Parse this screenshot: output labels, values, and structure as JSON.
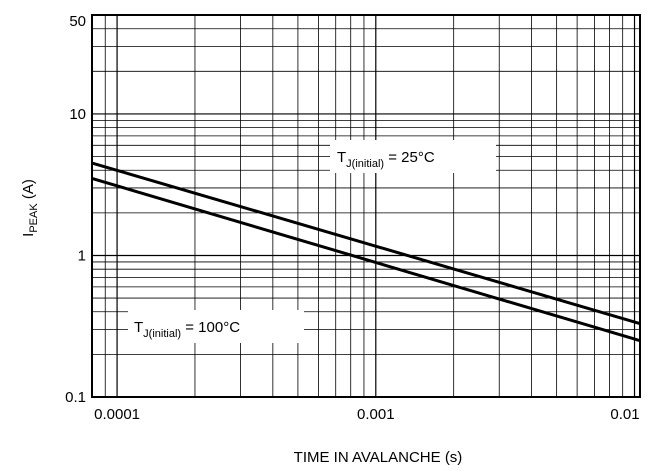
{
  "chart_data": {
    "type": "line",
    "title": "",
    "xlabel": "TIME IN AVALANCHE (s)",
    "ylabel": {
      "main": "I",
      "sub": "PEAK",
      "unit": " (A)"
    },
    "x_scale": "log",
    "y_scale": "log",
    "xlim": [
      8e-05,
      0.0105
    ],
    "ylim": [
      0.1,
      50
    ],
    "grid": true,
    "x_ticks": [
      {
        "value": 0.0001,
        "label": "0.0001"
      },
      {
        "value": 0.001,
        "label": "0.001"
      },
      {
        "value": 0.01,
        "label": "0.01"
      }
    ],
    "y_ticks": [
      {
        "value": 0.1,
        "label": "0.1"
      },
      {
        "value": 1,
        "label": "1"
      },
      {
        "value": 10,
        "label": "10"
      },
      {
        "value": 50,
        "label": "50"
      }
    ],
    "series": [
      {
        "name": "T_J(initial) = 25°C",
        "label_parts": {
          "main": "T",
          "sub": "J(initial)",
          "rest": " = 25°C"
        },
        "x": [
          8e-05,
          0.0105
        ],
        "y": [
          4.5,
          0.33
        ]
      },
      {
        "name": "T_J(initial) = 100°C",
        "label_parts": {
          "main": "T",
          "sub": "J(initial)",
          "rest": " = 100°C"
        },
        "x": [
          8e-05,
          0.0105
        ],
        "y": [
          3.5,
          0.25
        ]
      }
    ],
    "colors": {
      "line": "#000000",
      "grid": "#000000",
      "background": "#ffffff"
    }
  }
}
